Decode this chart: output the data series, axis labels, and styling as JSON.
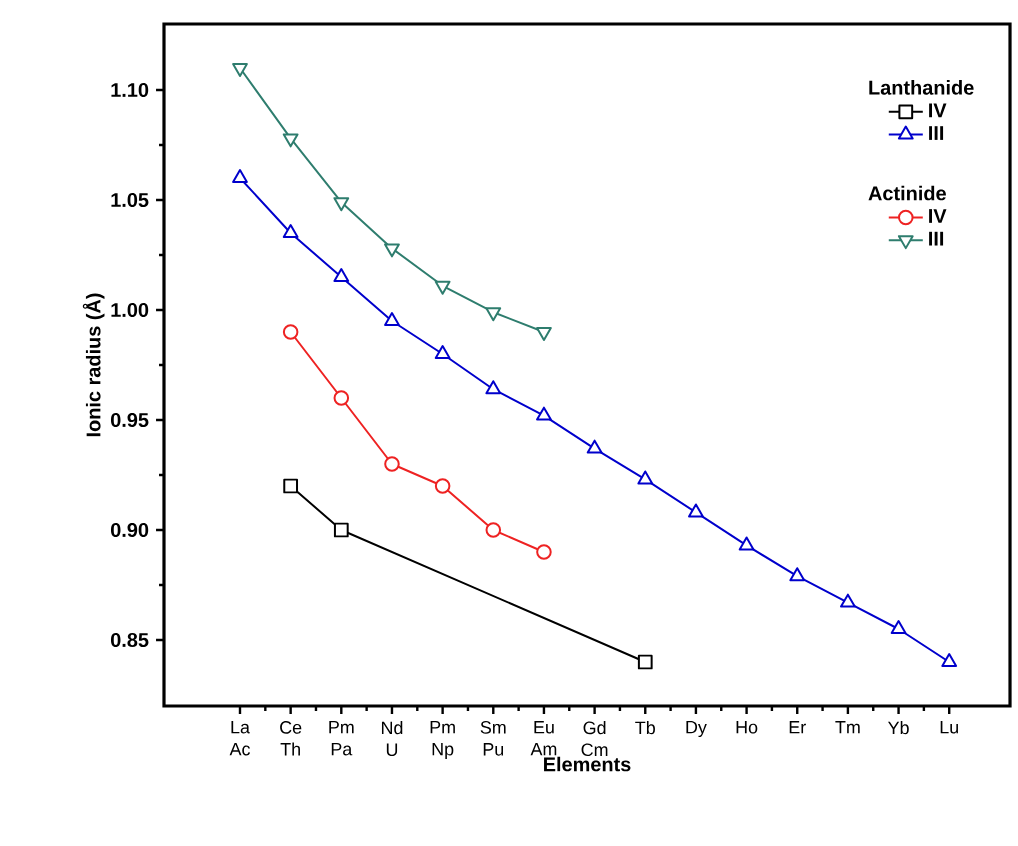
{
  "chart_data": {
    "type": "line",
    "xlabel": "Elements",
    "ylabel": "Ionic radius (Å)",
    "categories": [
      "La",
      "Ce",
      "Pm",
      "Nd",
      "Pm",
      "Sm",
      "Eu",
      "Gd",
      "Tb",
      "Dy",
      "Ho",
      "Er",
      "Tm",
      "Yb",
      "Lu"
    ],
    "annotations": [
      "Lanthanide",
      "Actinide",
      "Ac",
      "Th",
      "Pa",
      "U",
      "Np",
      "Pu",
      "Am",
      "Cm"
    ],
    "ylim": [
      0.82,
      1.13
    ],
    "yticks": [
      {
        "value": 0.85,
        "label": "0.85"
      },
      {
        "value": 0.9,
        "label": "0.90"
      },
      {
        "value": 0.95,
        "label": "0.95"
      },
      {
        "value": 1.0,
        "label": "1.00"
      },
      {
        "value": 1.05,
        "label": "1.05"
      },
      {
        "value": 1.1,
        "label": "1.10"
      }
    ],
    "grid": false,
    "legend": "top right",
    "series": [
      {
        "name": "IV",
        "color": "#000000",
        "marker": "square",
        "values": [
          null,
          0.92,
          0.9,
          null,
          null,
          null,
          null,
          null,
          0.84,
          null,
          null,
          null,
          null,
          null,
          null
        ]
      },
      {
        "name": "III",
        "color": "#0000cc",
        "marker": "triangle",
        "values": [
          1.06,
          1.035,
          1.015,
          0.995,
          0.98,
          0.964,
          0.952,
          0.937,
          0.923,
          0.908,
          0.893,
          0.879,
          0.867,
          0.855,
          0.84
        ]
      },
      {
        "name": "IV",
        "color": "#ee2222",
        "marker": "circle",
        "values": [
          null,
          0.99,
          0.96,
          0.93,
          0.92,
          0.9,
          0.89,
          null,
          null,
          null,
          null,
          null,
          null,
          null,
          null
        ]
      },
      {
        "name": "III",
        "color": "#2e7d6e",
        "marker": "triangle down",
        "values": [
          1.11,
          1.078,
          1.049,
          1.028,
          1.011,
          0.999,
          0.99,
          null,
          null,
          null,
          null,
          null,
          null,
          null,
          null
        ]
      }
    ]
  }
}
